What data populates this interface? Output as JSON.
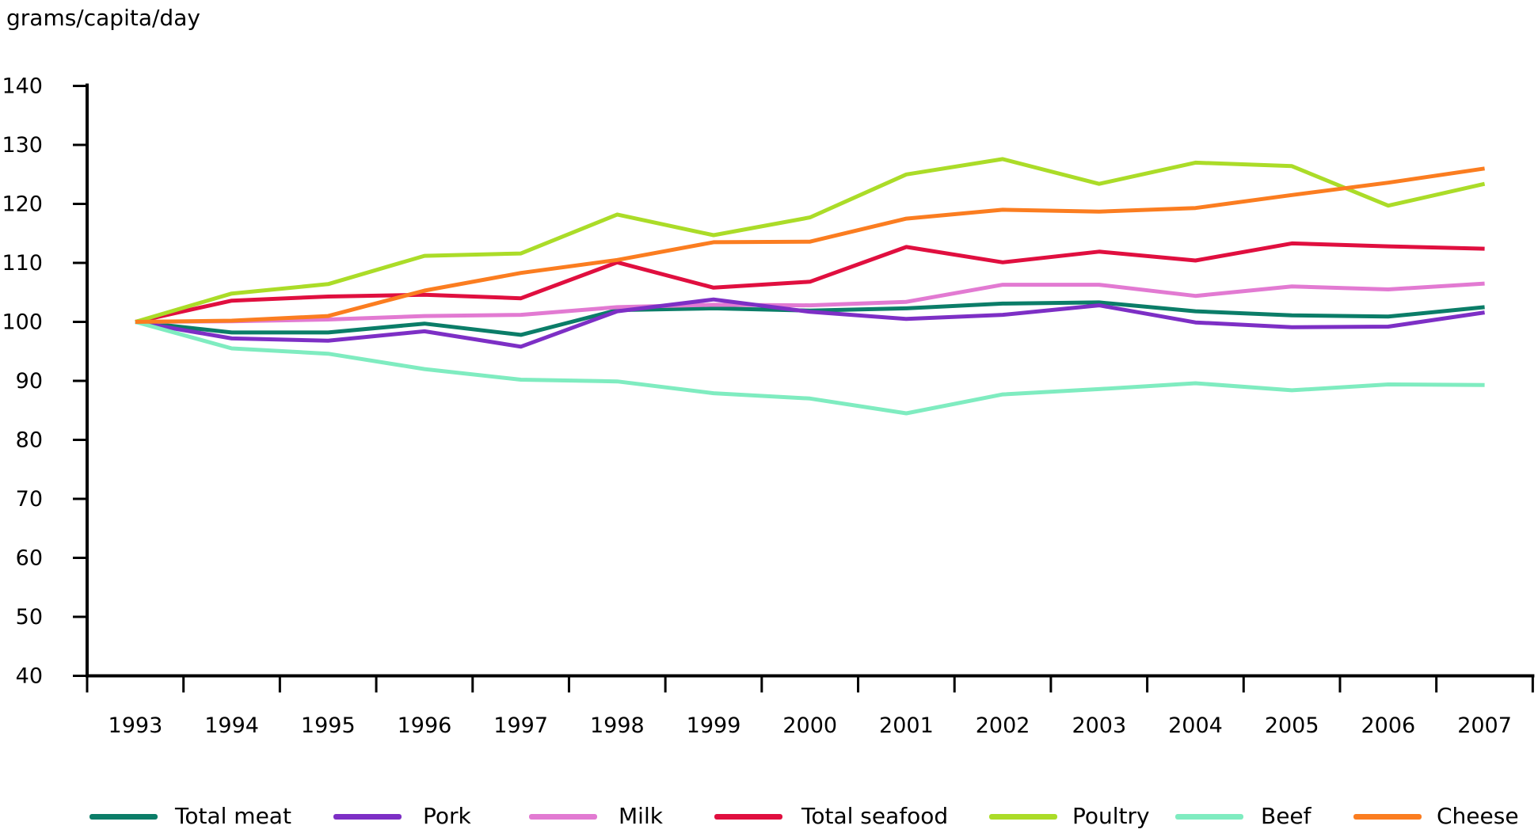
{
  "page": {
    "title": "grams/capita/day"
  },
  "chart_data": {
    "type": "line",
    "title": "grams/capita/day",
    "ylabel": "grams/capita/day",
    "xlabel": "",
    "categories": [
      "1993",
      "1994",
      "1995",
      "1996",
      "1997",
      "1998",
      "1999",
      "2000",
      "2001",
      "2002",
      "2003",
      "2004",
      "2005",
      "2006",
      "2007"
    ],
    "ylim": [
      40,
      140
    ],
    "y_tick_step": 10,
    "grid": false,
    "legend_position": "bottom",
    "axis_color": "#000000",
    "series": [
      {
        "name": "Total meat",
        "color": "#0b7d68",
        "values": [
          100,
          98.2,
          98.2,
          99.7,
          97.8,
          102.0,
          102.3,
          101.9,
          102.3,
          103.1,
          103.3,
          101.8,
          101.1,
          100.9,
          102.5
        ]
      },
      {
        "name": "Pork",
        "color": "#7d2fc5",
        "values": [
          100,
          97.2,
          96.8,
          98.4,
          95.8,
          101.8,
          103.8,
          101.7,
          100.5,
          101.2,
          102.8,
          99.9,
          99.1,
          99.2,
          101.6
        ]
      },
      {
        "name": "Milk",
        "color": "#e27ad2",
        "values": [
          100,
          100.1,
          100.4,
          101.0,
          101.2,
          102.5,
          102.9,
          102.8,
          103.4,
          106.3,
          106.3,
          104.4,
          106.0,
          105.5,
          106.5
        ]
      },
      {
        "name": "Total seafood",
        "color": "#e00f3f",
        "values": [
          100,
          103.6,
          104.3,
          104.6,
          104.0,
          110.1,
          105.8,
          106.8,
          112.7,
          110.1,
          111.9,
          110.4,
          113.3,
          112.8,
          112.4
        ]
      },
      {
        "name": "Poultry",
        "color": "#abdc28",
        "values": [
          100,
          104.8,
          106.4,
          111.2,
          111.6,
          118.2,
          114.7,
          117.7,
          125.0,
          127.6,
          123.4,
          127.0,
          126.4,
          119.7,
          123.4
        ]
      },
      {
        "name": "Beef",
        "color": "#7fecc0",
        "values": [
          100,
          95.5,
          94.6,
          92.0,
          90.2,
          89.9,
          87.9,
          87.0,
          84.5,
          87.7,
          88.6,
          89.6,
          88.4,
          89.4,
          89.3
        ]
      },
      {
        "name": "Cheese",
        "color": "#fb7d20",
        "values": [
          100,
          100.2,
          101.0,
          105.3,
          108.3,
          110.5,
          113.5,
          113.6,
          117.5,
          119.0,
          118.7,
          119.3,
          121.5,
          123.6,
          126.0
        ]
      }
    ]
  }
}
